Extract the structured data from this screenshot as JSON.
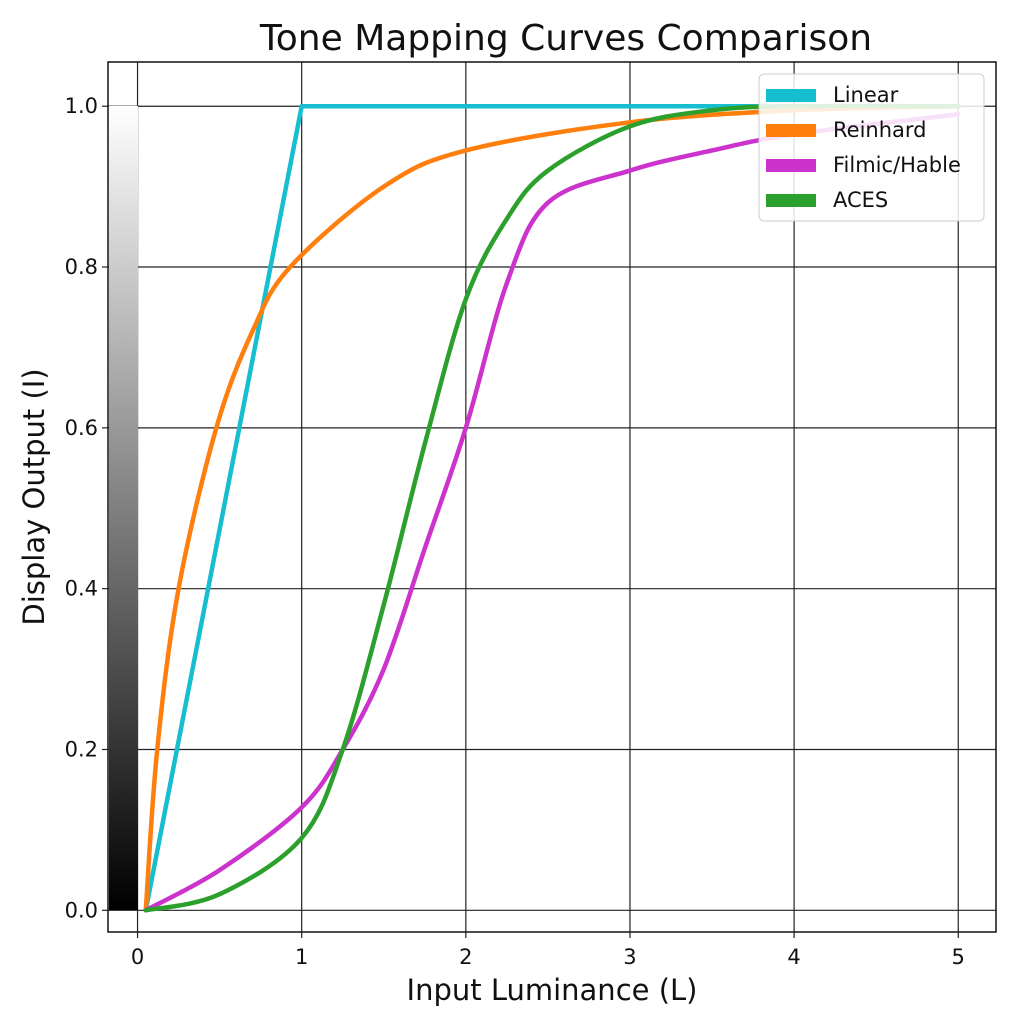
{
  "chart_data": {
    "type": "line",
    "title": "Tone Mapping Curves Comparison",
    "xlabel": "Input Luminance (L)",
    "ylabel": "Display Output (I)",
    "xlim": [
      -0.18,
      5.23
    ],
    "ylim": [
      -0.027,
      1.055
    ],
    "xticks": [
      0,
      1,
      2,
      3,
      4,
      5
    ],
    "xtick_labels": [
      "0",
      "1",
      "2",
      "3",
      "4",
      "5"
    ],
    "yticks": [
      0,
      0.2,
      0.4,
      0.6,
      0.8,
      1.0
    ],
    "ytick_labels": [
      "0.0",
      "0.2",
      "0.4",
      "0.6",
      "0.8",
      "1.0"
    ],
    "grid": true,
    "legend_position": "top-right",
    "colorbar": "grayscale gradient strip along y-axis, black at 0 to white at 1",
    "series": [
      {
        "name": "Linear",
        "color": "#17becf",
        "smooth": false,
        "points": [
          [
            0.05,
            0
          ],
          [
            1,
            1
          ],
          [
            5,
            1
          ]
        ]
      },
      {
        "name": "Reinhard",
        "color": "#ff7f0e",
        "smooth": true,
        "points": [
          [
            0.05,
            0
          ],
          [
            0.12,
            0.2
          ],
          [
            0.25,
            0.4
          ],
          [
            0.48,
            0.6
          ],
          [
            0.7,
            0.72
          ],
          [
            0.93,
            0.8
          ],
          [
            1.5,
            0.9
          ],
          [
            2,
            0.945
          ],
          [
            3,
            0.98
          ],
          [
            4,
            0.995
          ],
          [
            5,
            1.0
          ]
        ]
      },
      {
        "name": "Filmic/Hable",
        "color": "#cc33cc",
        "smooth": true,
        "points": [
          [
            0.05,
            0
          ],
          [
            0.5,
            0.05
          ],
          [
            1,
            0.128
          ],
          [
            1.25,
            0.2
          ],
          [
            1.5,
            0.3
          ],
          [
            1.75,
            0.45
          ],
          [
            2,
            0.6
          ],
          [
            2.25,
            0.78
          ],
          [
            2.5,
            0.88
          ],
          [
            3,
            0.92
          ],
          [
            3.5,
            0.945
          ],
          [
            4,
            0.965
          ],
          [
            5,
            0.99
          ]
        ]
      },
      {
        "name": "ACES",
        "color": "#2ca02c",
        "smooth": true,
        "points": [
          [
            0.05,
            0
          ],
          [
            0.5,
            0.02
          ],
          [
            1,
            0.09
          ],
          [
            1.25,
            0.2
          ],
          [
            1.5,
            0.38
          ],
          [
            1.75,
            0.58
          ],
          [
            2,
            0.76
          ],
          [
            2.25,
            0.86
          ],
          [
            2.5,
            0.92
          ],
          [
            3,
            0.975
          ],
          [
            3.5,
            0.995
          ],
          [
            4,
            1.0
          ],
          [
            5,
            1.0
          ]
        ]
      }
    ]
  }
}
